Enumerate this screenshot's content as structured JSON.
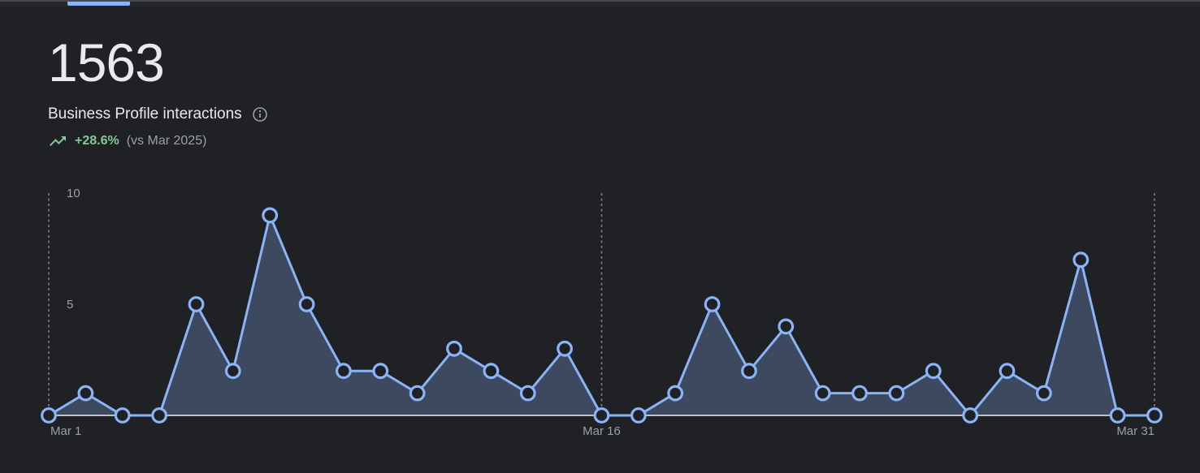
{
  "page": {
    "background": "#202124"
  },
  "topbar": {
    "indicator_color": "#8ab4f8"
  },
  "metric": {
    "value": "1563",
    "label": "Business Profile interactions",
    "trend_delta": "+28.6%",
    "trend_comparison": "(vs Mar 2025)",
    "trend_color": "#81c995",
    "trend_direction": "up"
  },
  "chart_data": {
    "type": "area",
    "title": "",
    "xlabel": "",
    "ylabel": "",
    "categories": [
      "Mar 1",
      "Mar 2",
      "Mar 3",
      "Mar 4",
      "Mar 5",
      "Mar 6",
      "Mar 7",
      "Mar 8",
      "Mar 9",
      "Mar 10",
      "Mar 11",
      "Mar 12",
      "Mar 13",
      "Mar 14",
      "Mar 15",
      "Mar 16",
      "Mar 17",
      "Mar 18",
      "Mar 19",
      "Mar 20",
      "Mar 21",
      "Mar 22",
      "Mar 23",
      "Mar 24",
      "Mar 25",
      "Mar 26",
      "Mar 27",
      "Mar 28",
      "Mar 29",
      "Mar 30",
      "Mar 31"
    ],
    "values": [
      0,
      1,
      0,
      0,
      5,
      2,
      9,
      5,
      2,
      2,
      1,
      3,
      2,
      1,
      3,
      0,
      0,
      1,
      5,
      2,
      4,
      1,
      1,
      1,
      2,
      0,
      2,
      1,
      7,
      0,
      0
    ],
    "ylim": [
      0,
      10
    ],
    "y_tick_values": [
      5,
      10
    ],
    "y_tick_labels": [
      "5",
      "10"
    ],
    "x_tick_indices": [
      0,
      15,
      30
    ],
    "x_tick_labels": [
      "Mar 1",
      "Mar 16",
      "Mar 31"
    ],
    "grid": "dashed vertical lines at x ticks",
    "legend": "none",
    "line_color": "#8ab4f8",
    "fill_color": "rgba(138,180,248,0.28)",
    "marker_style": "open circle",
    "marker_fill": "#202124",
    "baseline_color": "#bdc1c6",
    "dash_color": "#8b9095",
    "tick_text_color": "#9aa0a6"
  }
}
